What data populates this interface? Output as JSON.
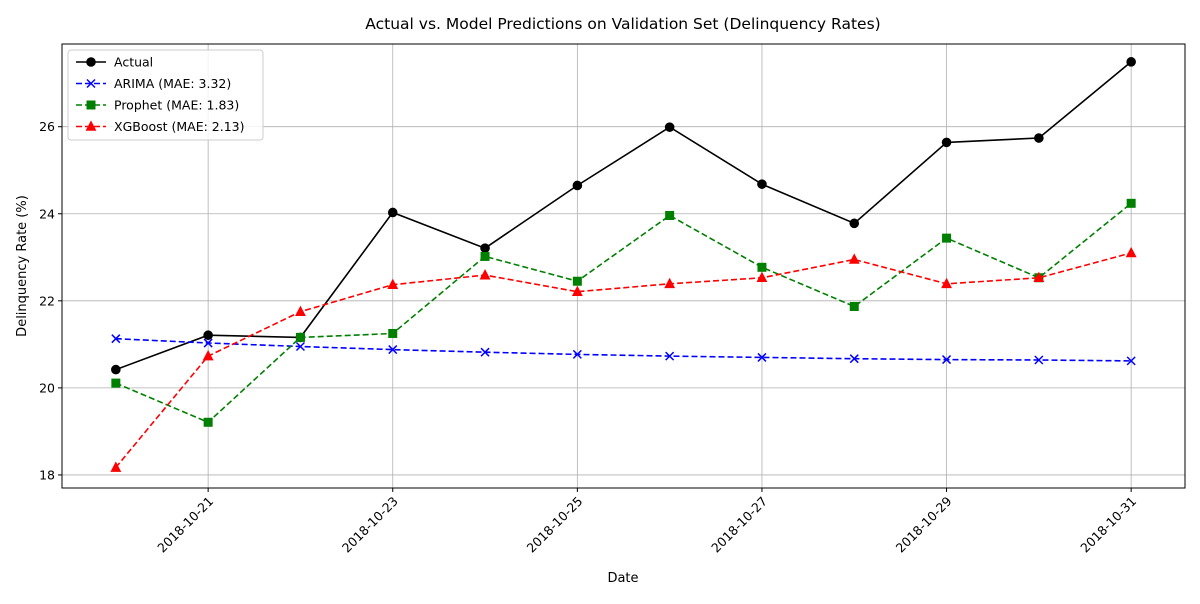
{
  "chart_data": {
    "type": "line",
    "title": "Actual vs. Model Predictions on Validation Set (Delinquency Rates)",
    "xlabel": "Date",
    "ylabel": "Delinquency Rate (%)",
    "x": [
      "2018-10-20",
      "2018-10-21",
      "2018-10-22",
      "2018-10-23",
      "2018-10-24",
      "2018-10-25",
      "2018-10-26",
      "2018-10-27",
      "2018-10-28",
      "2018-10-29",
      "2018-10-30",
      "2018-10-31"
    ],
    "x_ticks": [
      "2018-10-21",
      "2018-10-23",
      "2018-10-25",
      "2018-10-27",
      "2018-10-29",
      "2018-10-31"
    ],
    "y_ticks": [
      18,
      20,
      22,
      24,
      26
    ],
    "xlim": [
      "2018-10-19T10:00",
      "2018-10-31T14:00"
    ],
    "ylim": [
      17.7,
      27.9
    ],
    "grid": true,
    "legend_position": "top-left",
    "series": [
      {
        "name": "Actual",
        "color": "#000000",
        "dash": "solid",
        "marker": "circle",
        "values": [
          20.42,
          21.21,
          21.16,
          24.03,
          23.21,
          24.65,
          25.99,
          24.68,
          23.78,
          25.64,
          25.74,
          27.49
        ]
      },
      {
        "name": "ARIMA (MAE: 3.32)",
        "color": "#0000ff",
        "dash": "dashed",
        "marker": "x",
        "values": [
          21.13,
          21.03,
          20.95,
          20.88,
          20.82,
          20.77,
          20.73,
          20.7,
          20.67,
          20.65,
          20.64,
          20.62
        ]
      },
      {
        "name": "Prophet (MAE: 1.83)",
        "color": "#008000",
        "dash": "dashed",
        "marker": "square",
        "values": [
          20.11,
          19.21,
          21.16,
          21.25,
          23.02,
          22.45,
          23.96,
          22.77,
          21.87,
          23.44,
          22.53,
          24.24
        ]
      },
      {
        "name": "XGBoost (MAE: 2.13)",
        "color": "#ff0000",
        "dash": "dashed",
        "marker": "triangle",
        "values": [
          18.17,
          20.73,
          21.75,
          22.37,
          22.59,
          22.21,
          22.39,
          22.53,
          22.95,
          22.39,
          22.53,
          23.1
        ]
      }
    ]
  }
}
